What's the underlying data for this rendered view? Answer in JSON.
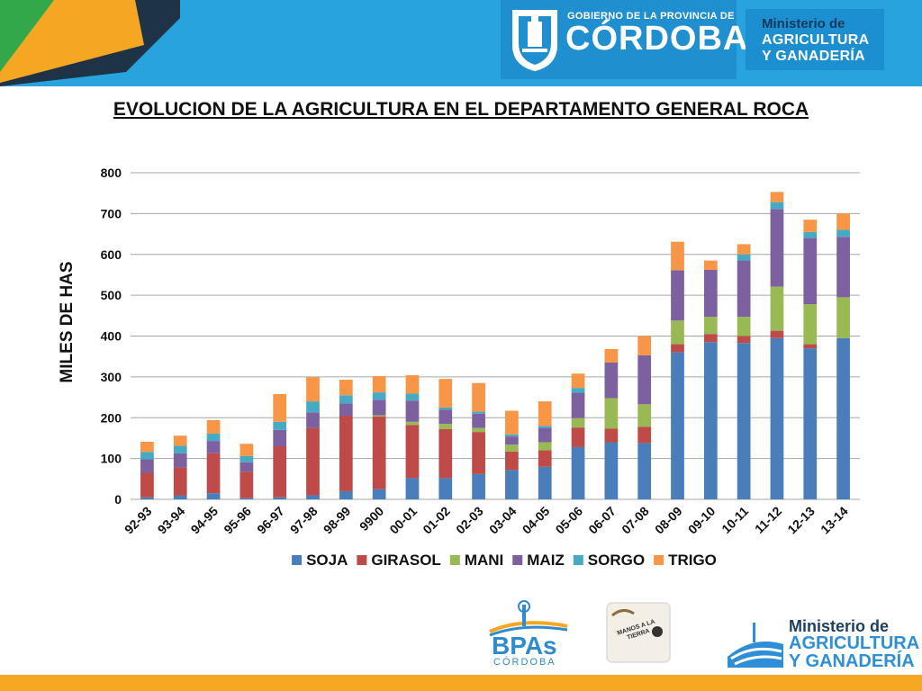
{
  "header": {
    "gov_line1": "GOBIERNO DE LA PROVINCIA DE",
    "gov_line2": "CÓRDOBA",
    "ministry_line1": "Ministerio de",
    "ministry_line2": "AGRICULTURA",
    "ministry_line3": "Y GANADERÍA"
  },
  "footer": {
    "bpas_big": "BPAs",
    "bpas_small": "CÓRDOBA",
    "manos_text": "MANOS A LA TIERRA",
    "ministry_line1": "Ministerio de",
    "ministry_line2": "AGRICULTURA",
    "ministry_line3": "Y GANADERÍA"
  },
  "colors": {
    "SOJA": "#4a7ebb",
    "GIRASOL": "#be4b48",
    "MANI": "#98b954",
    "MAIZ": "#7d60a0",
    "SORGO": "#46aac5",
    "TRIGO": "#f79646"
  },
  "chart_data": {
    "type": "bar",
    "stacked": true,
    "title": "EVOLUCION DE LA AGRICULTURA EN EL DEPARTAMENTO GENERAL ROCA",
    "xlabel": "",
    "ylabel": "MILES DE HAS",
    "ylim": [
      0,
      800
    ],
    "yticks": [
      0,
      100,
      200,
      300,
      400,
      500,
      600,
      700,
      800
    ],
    "grid": true,
    "legend_position": "bottom",
    "categories": [
      "92-93",
      "93-94",
      "94-95",
      "95-96",
      "96-97",
      "97-98",
      "98-99",
      "9900",
      "00-01",
      "01-02",
      "02-03",
      "03-04",
      "04-05",
      "05-06",
      "06-07",
      "07-08",
      "08-09",
      "09-10",
      "10-11",
      "11-12",
      "12-13",
      "13-14"
    ],
    "series": [
      {
        "name": "SOJA",
        "values": [
          5,
          10,
          15,
          3,
          5,
          10,
          20,
          25,
          52,
          52,
          62,
          72,
          80,
          128,
          140,
          138,
          360,
          385,
          383,
          395,
          370,
          395
        ]
      },
      {
        "name": "GIRASOL",
        "values": [
          60,
          68,
          98,
          65,
          125,
          165,
          185,
          178,
          130,
          120,
          103,
          45,
          40,
          48,
          33,
          40,
          20,
          20,
          17,
          18,
          10,
          0
        ]
      },
      {
        "name": "MANI",
        "values": [
          0,
          0,
          0,
          0,
          0,
          0,
          0,
          3,
          8,
          13,
          10,
          17,
          20,
          23,
          75,
          55,
          58,
          42,
          47,
          108,
          98,
          100
        ]
      },
      {
        "name": "MAIZ",
        "values": [
          33,
          35,
          30,
          23,
          40,
          38,
          30,
          38,
          52,
          35,
          35,
          20,
          35,
          62,
          87,
          120,
          123,
          115,
          138,
          190,
          162,
          148
        ]
      },
      {
        "name": "SORGO",
        "values": [
          18,
          18,
          18,
          15,
          20,
          27,
          20,
          18,
          17,
          5,
          5,
          5,
          5,
          12,
          0,
          0,
          0,
          0,
          15,
          17,
          15,
          17
        ]
      },
      {
        "name": "TRIGO",
        "values": [
          25,
          25,
          33,
          30,
          68,
          59,
          38,
          40,
          45,
          70,
          70,
          58,
          60,
          35,
          33,
          47,
          70,
          23,
          25,
          25,
          30,
          40
        ]
      }
    ]
  }
}
